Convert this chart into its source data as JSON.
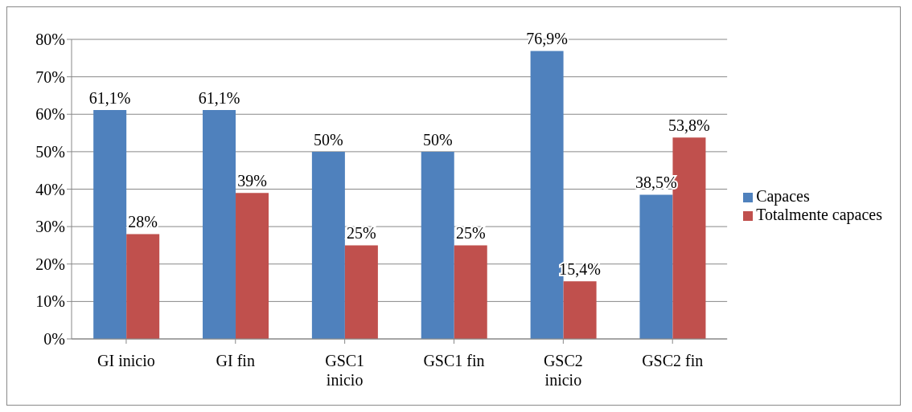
{
  "chart_data": {
    "type": "bar",
    "categories": [
      "GI inicio",
      "GI fin",
      "GSC1 inicio",
      "GSC1 fin",
      "GSC2 inicio",
      "GSC2 fin"
    ],
    "series": [
      {
        "name": "Capaces",
        "color": "#4f81bd",
        "values": [
          61.1,
          61.1,
          50,
          50,
          76.9,
          38.5
        ],
        "value_labels": [
          "61,1%",
          "61,1%",
          "50%",
          "50%",
          "76,9%",
          "38,5%"
        ]
      },
      {
        "name": "Totalmente capaces",
        "color": "#c0504d",
        "values": [
          28,
          39,
          25,
          25,
          15.4,
          53.8
        ],
        "value_labels": [
          "28%",
          "39%",
          "25%",
          "25%",
          "15,4%",
          "53,8%"
        ]
      }
    ],
    "ylim": [
      0,
      80
    ],
    "yticks": [
      {
        "value": 0,
        "label": "0%"
      },
      {
        "value": 10,
        "label": "10%"
      },
      {
        "value": 20,
        "label": "20%"
      },
      {
        "value": 30,
        "label": "30%"
      },
      {
        "value": 40,
        "label": "40%"
      },
      {
        "value": 50,
        "label": "50%"
      },
      {
        "value": 60,
        "label": "60%"
      },
      {
        "value": 70,
        "label": "70%"
      },
      {
        "value": 80,
        "label": "80%"
      }
    ],
    "grid": "y",
    "legend": "right"
  }
}
